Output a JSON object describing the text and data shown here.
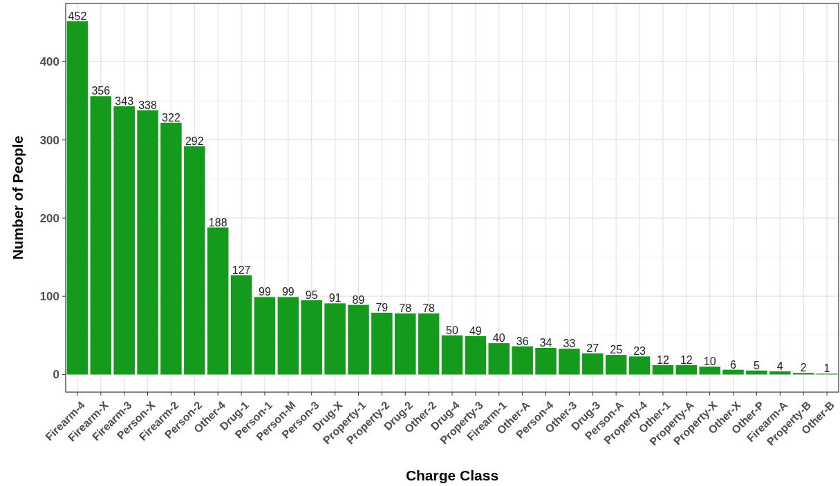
{
  "chart_data": {
    "type": "bar",
    "xlabel": "Charge Class",
    "ylabel": "Number of People",
    "categories": [
      "Firearm-4",
      "Firearm-X",
      "Firearm-3",
      "Person-X",
      "Firearm-2",
      "Person-2",
      "Other-4",
      "Drug-1",
      "Person-1",
      "Person-M",
      "Person-3",
      "Drug-X",
      "Property-1",
      "Property-2",
      "Drug-2",
      "Other-2",
      "Drug-4",
      "Property-3",
      "Firearm-1",
      "Other-A",
      "Person-4",
      "Other-3",
      "Drug-3",
      "Person-A",
      "Property-4",
      "Other-1",
      "Property-A",
      "Property-X",
      "Other-X",
      "Other-P",
      "Firearm-A",
      "Property-B",
      "Other-B"
    ],
    "values": [
      452,
      356,
      343,
      338,
      322,
      292,
      188,
      127,
      99,
      99,
      95,
      91,
      89,
      79,
      78,
      78,
      50,
      49,
      40,
      36,
      34,
      33,
      27,
      25,
      23,
      12,
      12,
      10,
      6,
      5,
      4,
      2,
      1
    ],
    "color": "#149a1c",
    "ylim": [
      -22.6,
      474.6
    ],
    "yticks": [
      0,
      100,
      200,
      300,
      400
    ],
    "grid": true,
    "data_labels": true
  }
}
